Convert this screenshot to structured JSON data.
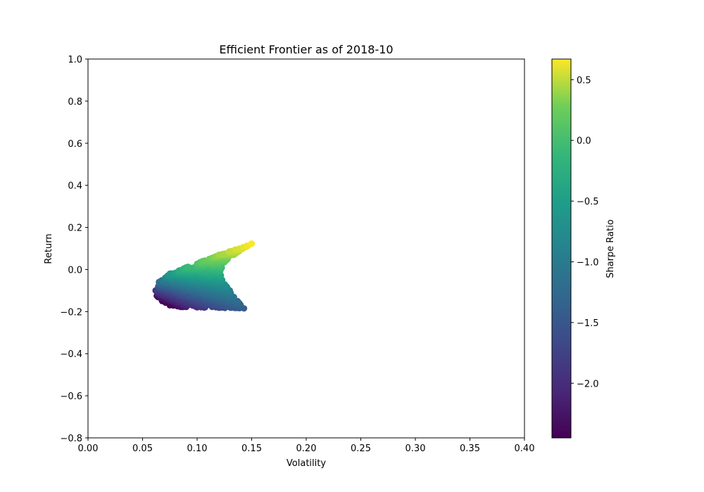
{
  "chart_data": {
    "type": "scatter",
    "title": "Efficient Frontier as of 2018-10",
    "xlabel": "Volatility",
    "ylabel": "Return",
    "xlim": [
      0.0,
      0.4
    ],
    "ylim": [
      -0.8,
      1.0
    ],
    "xticks": [
      "0.00",
      "0.05",
      "0.10",
      "0.15",
      "0.20",
      "0.25",
      "0.30",
      "0.35",
      "0.40"
    ],
    "yticks": [
      "−0.8",
      "−0.6",
      "−0.4",
      "−0.2",
      "0.0",
      "0.2",
      "0.4",
      "0.6",
      "0.8",
      "1.0"
    ],
    "grid": false,
    "colorbar": {
      "label": "Sharpe Ratio",
      "colormap": "viridis",
      "range": [
        -2.45,
        0.67
      ],
      "ticks": [
        "−2.0",
        "−1.5",
        "−1.0",
        "−0.5",
        "0.0",
        "0.5"
      ]
    },
    "frontier_boundary": [
      {
        "volatility": 0.062,
        "return": -0.1
      },
      {
        "volatility": 0.065,
        "return": -0.06
      },
      {
        "volatility": 0.075,
        "return": -0.02
      },
      {
        "volatility": 0.09,
        "return": 0.01
      },
      {
        "volatility": 0.105,
        "return": 0.04
      },
      {
        "volatility": 0.12,
        "return": 0.07
      },
      {
        "volatility": 0.135,
        "return": 0.095
      },
      {
        "volatility": 0.15,
        "return": 0.123
      }
    ],
    "inner_boundary": [
      {
        "volatility": 0.15,
        "return": 0.123
      },
      {
        "volatility": 0.135,
        "return": 0.075
      },
      {
        "volatility": 0.125,
        "return": 0.035
      },
      {
        "volatility": 0.121,
        "return": -0.01
      },
      {
        "volatility": 0.123,
        "return": -0.05
      },
      {
        "volatility": 0.13,
        "return": -0.1
      },
      {
        "volatility": 0.137,
        "return": -0.15
      },
      {
        "volatility": 0.143,
        "return": -0.185
      }
    ],
    "lower_boundary": [
      {
        "volatility": 0.143,
        "return": -0.185
      },
      {
        "volatility": 0.12,
        "return": -0.182
      },
      {
        "volatility": 0.1,
        "return": -0.18
      },
      {
        "volatility": 0.085,
        "return": -0.178
      },
      {
        "volatility": 0.075,
        "return": -0.17
      },
      {
        "volatility": 0.068,
        "return": -0.15
      },
      {
        "volatility": 0.063,
        "return": -0.125
      },
      {
        "volatility": 0.062,
        "return": -0.1
      }
    ]
  }
}
